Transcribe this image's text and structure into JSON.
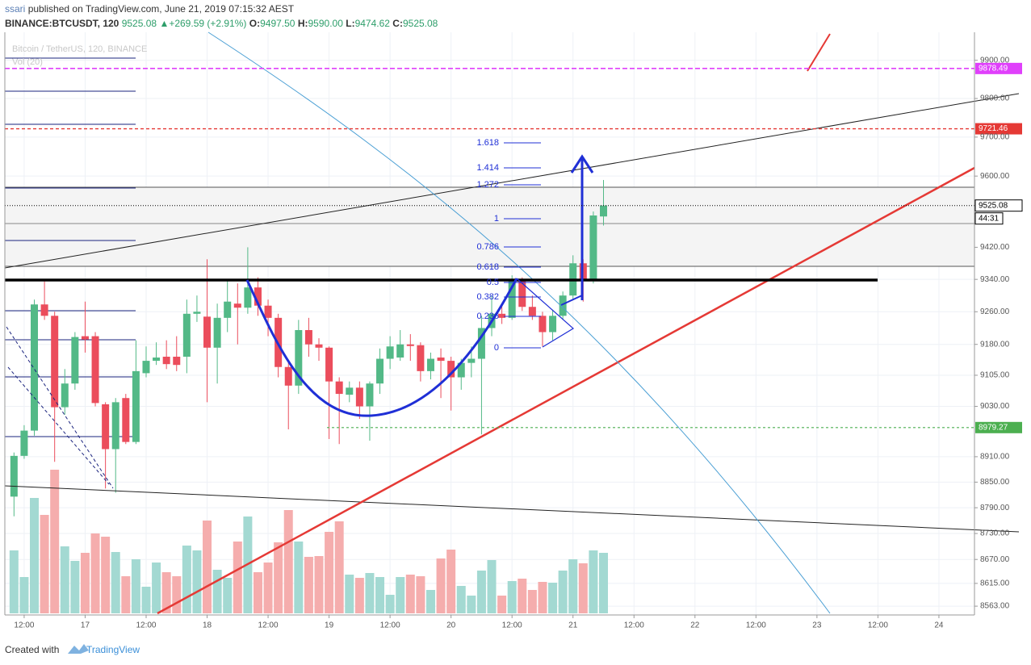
{
  "chart_data": {
    "type": "candlestick",
    "author": "ssari",
    "published": "published on TradingView.com, June 21, 2019 07:15:32 AEST",
    "symbol": "BINANCE:BTCUSDT, 120",
    "last": "9525.08",
    "arrow": "▲",
    "change": "+269.59 (+2.91%)",
    "ohlc": [
      {
        "key": "O:",
        "value": "9497.50"
      },
      {
        "key": "H:",
        "value": "9590.00"
      },
      {
        "key": "L:",
        "value": "9474.62"
      },
      {
        "key": "C:",
        "value": "9525.08"
      }
    ],
    "legend": "Bitcoin / TetherUS, 120, BINANCE",
    "volume_label": "Vol (20)",
    "x": [
      -2,
      0,
      2,
      4,
      6,
      8,
      10,
      12,
      14,
      16,
      18,
      20,
      22,
      24,
      26,
      28,
      30,
      32,
      34,
      36,
      38,
      40,
      42,
      44,
      46,
      48,
      50,
      52,
      54,
      56,
      58,
      60,
      62,
      64,
      66,
      68,
      70,
      72,
      74,
      76,
      78,
      80,
      82,
      84,
      86,
      88,
      90,
      92,
      94,
      96,
      98,
      100,
      102,
      104,
      106,
      108,
      110,
      112,
      114
    ],
    "open": [
      8816,
      8912,
      8972,
      9278,
      9250,
      9028,
      9085,
      9200,
      9200,
      9035,
      8928,
      9050,
      8945,
      9110,
      9140,
      9150,
      9150,
      9150,
      9255,
      9248,
      9172,
      9245,
      9280,
      9270,
      9320,
      9275,
      9245,
      9125,
      9080,
      9215,
      9180,
      9172,
      9090,
      9058,
      9075,
      9030,
      9085,
      9145,
      9148,
      9180,
      9178,
      9115,
      9148,
      9140,
      9100,
      9135,
      9145,
      9220,
      9255,
      9245,
      9338,
      9272,
      9250,
      9210,
      9250,
      9300,
      9380,
      9340,
      9497.5
    ],
    "high": [
      8920,
      8985,
      9290,
      9335,
      9260,
      9120,
      9210,
      9285,
      9210,
      9040,
      9050,
      9060,
      9190,
      9175,
      9185,
      9190,
      9200,
      9290,
      9300,
      9390,
      9280,
      9340,
      9330,
      9420,
      9345,
      9290,
      9255,
      9135,
      9240,
      9245,
      9195,
      9175,
      9100,
      9090,
      9090,
      9090,
      9170,
      9200,
      9215,
      9205,
      9185,
      9160,
      9170,
      9150,
      9145,
      9175,
      9250,
      9300,
      9275,
      9350,
      9345,
      9300,
      9260,
      9265,
      9310,
      9400,
      9390,
      9510,
      9590
    ],
    "low": [
      8770,
      8905,
      8960,
      9240,
      8898,
      9010,
      9070,
      9160,
      9030,
      8835,
      8825,
      8940,
      8940,
      9100,
      9130,
      9120,
      9115,
      9110,
      9235,
      9040,
      9085,
      9210,
      9180,
      9255,
      9250,
      9200,
      9100,
      8975,
      9060,
      9150,
      9140,
      8952,
      8940,
      9040,
      9000,
      8948,
      9060,
      9120,
      9140,
      9140,
      9090,
      9095,
      9050,
      9020,
      9070,
      9100,
      8963,
      9200,
      9230,
      9240,
      9262,
      9240,
      9175,
      9190,
      9240,
      9290,
      9285,
      9330,
      9474.62
    ],
    "close": [
      8912,
      8972,
      9278,
      9250,
      9028,
      9085,
      9198,
      9192,
      9038,
      8928,
      9040,
      8945,
      9115,
      9140,
      9148,
      9132,
      9130,
      9255,
      9260,
      9172,
      9245,
      9285,
      9270,
      9320,
      9275,
      9245,
      9125,
      9080,
      9215,
      9180,
      9172,
      9090,
      9060,
      9075,
      9030,
      9085,
      9145,
      9175,
      9180,
      9176,
      9115,
      9145,
      9140,
      9100,
      9135,
      9145,
      9220,
      9255,
      9245,
      9338,
      9272,
      9250,
      9210,
      9250,
      9300,
      9380,
      9340,
      9500,
      9525.08
    ],
    "volume": [
      78,
      45,
      143,
      122,
      178,
      83,
      65,
      75,
      99,
      95,
      76,
      46,
      67,
      33,
      63,
      51,
      46,
      84,
      78,
      115,
      54,
      44,
      89,
      120,
      51,
      63,
      88,
      128,
      89,
      70,
      71,
      101,
      114,
      48,
      44,
      50,
      45,
      23,
      45,
      48,
      46,
      29,
      68,
      79,
      34,
      22,
      53,
      66,
      22,
      40,
      43,
      29,
      39,
      38,
      53,
      67,
      62,
      78,
      75
    ],
    "up_color": "#53b987",
    "down_color": "#eb4d5c",
    "up_volume_color": "#a3d9d2",
    "down_volume_color": "#f5adad",
    "log_scale": true,
    "grid": true,
    "ylim": [
      8543,
      9974
    ],
    "yticks": [
      {
        "value": 9900,
        "label": "9900.00"
      },
      {
        "value": 9800,
        "label": "9800.00"
      },
      {
        "value": 9700,
        "label": "9700.00"
      },
      {
        "value": 9600,
        "label": "9600.00"
      },
      {
        "value": 9420,
        "label": "9420.00"
      },
      {
        "value": 9340,
        "label": "9340.00"
      },
      {
        "value": 9260,
        "label": "9260.00"
      },
      {
        "value": 9180,
        "label": "9180.00"
      },
      {
        "value": 9105,
        "label": "9105.00"
      },
      {
        "value": 9030,
        "label": "9030.00"
      },
      {
        "value": 8910,
        "label": "8910.00"
      },
      {
        "value": 8850,
        "label": "8850.00"
      },
      {
        "value": 8790,
        "label": "8790.00"
      },
      {
        "value": 8730,
        "label": "8730.00"
      },
      {
        "value": 8670,
        "label": "8670.00"
      },
      {
        "value": 8615,
        "label": "8615.00"
      },
      {
        "value": 8563,
        "label": "8563.00"
      }
    ],
    "xlim": [
      -3.8,
      187
    ],
    "xticks": [
      {
        "value": 0,
        "label": "12:00"
      },
      {
        "value": 12,
        "label": "17"
      },
      {
        "value": 24,
        "label": "12:00"
      },
      {
        "value": 36,
        "label": "18"
      },
      {
        "value": 48,
        "label": "12:00"
      },
      {
        "value": 60,
        "label": "19"
      },
      {
        "value": 72,
        "label": "12:00"
      },
      {
        "value": 84,
        "label": "20"
      },
      {
        "value": 96,
        "label": "12:00"
      },
      {
        "value": 108,
        "label": "21"
      },
      {
        "value": 120,
        "label": "12:00"
      },
      {
        "value": 132,
        "label": "22"
      },
      {
        "value": 144,
        "label": "12:00"
      },
      {
        "value": 156,
        "label": "23"
      },
      {
        "value": 168,
        "label": "12:00"
      },
      {
        "value": 180,
        "label": "24"
      }
    ],
    "price_lines": [
      {
        "value": 9878.49,
        "color": "#e040fb"
      },
      {
        "value": 9721.46,
        "color": "#e53935"
      },
      {
        "value": 9525.08,
        "color": "#000000"
      },
      {
        "value": 8979.27,
        "color": "#4caf50"
      }
    ],
    "countdown": "44:31",
    "fib_levels": [
      "1.618",
      "1.414",
      "1.272",
      "1",
      "0.786",
      "0.618",
      "0.5",
      "0.382",
      "0.236",
      "0"
    ],
    "footer": {
      "created": "Created with",
      "brand": "TradingView"
    }
  }
}
